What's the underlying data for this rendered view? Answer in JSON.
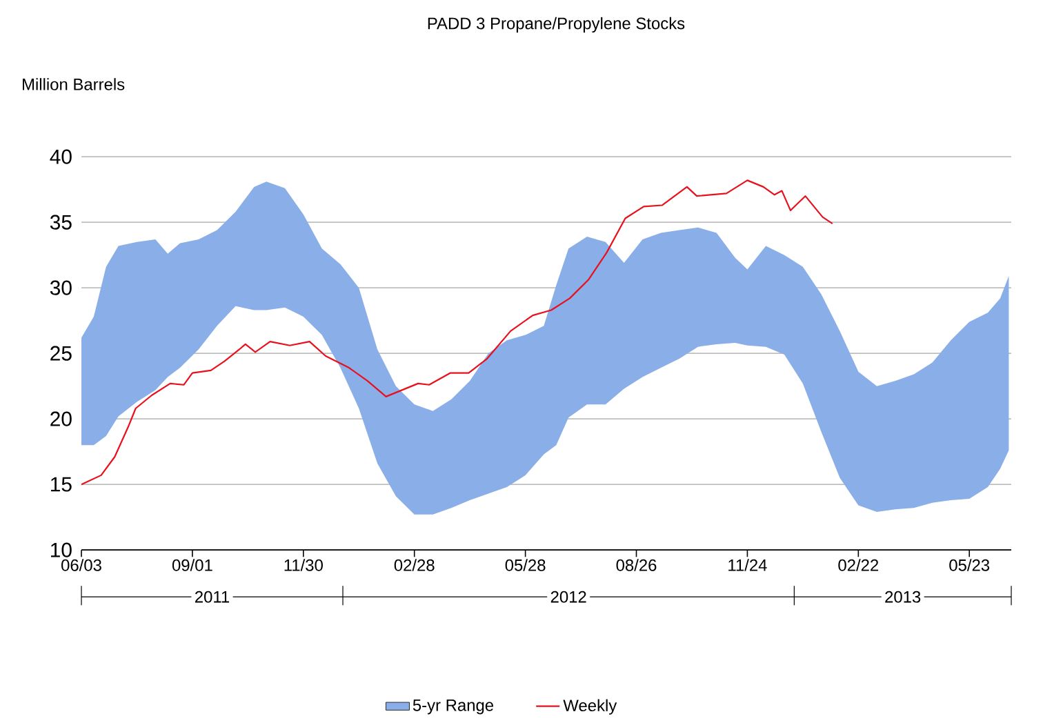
{
  "chart_data": {
    "type": "line",
    "title": "PADD 3 Propane/Propylene Stocks",
    "ylabel": "Million Barrels",
    "xlim": [
      "2011-06-03",
      "2013-06-26"
    ],
    "ylim": [
      10,
      40
    ],
    "yticks": [
      10,
      15,
      20,
      25,
      30,
      35,
      40
    ],
    "xticks": [
      {
        "value": "2011-06-03",
        "label": "06/03"
      },
      {
        "value": "2011-09-01",
        "label": "09/01"
      },
      {
        "value": "2011-11-30",
        "label": "11/30"
      },
      {
        "value": "2012-02-28",
        "label": "02/28"
      },
      {
        "value": "2012-05-28",
        "label": "05/28"
      },
      {
        "value": "2012-08-26",
        "label": "08/26"
      },
      {
        "value": "2012-11-24",
        "label": "11/24"
      },
      {
        "value": "2013-02-22",
        "label": "02/22"
      },
      {
        "value": "2013-05-23",
        "label": "05/23"
      }
    ],
    "annotations": [
      "2011",
      "2012",
      "2013"
    ],
    "grid": "y",
    "legend": "bottom",
    "marker": "none",
    "line_style": "solid",
    "series": [
      {
        "name": "5-yr Range",
        "type": "area",
        "color": "#8aaee8",
        "x": [
          "2011-06-03",
          "2011-06-13",
          "2011-06-23",
          "2011-07-03",
          "2011-07-18",
          "2011-08-02",
          "2011-08-12",
          "2011-08-22",
          "2011-09-06",
          "2011-09-21",
          "2011-10-06",
          "2011-10-21",
          "2011-10-31",
          "2011-11-15",
          "2011-11-30",
          "2011-12-15",
          "2011-12-30",
          "2012-01-14",
          "2012-01-29",
          "2012-02-13",
          "2012-02-28",
          "2012-03-14",
          "2012-03-29",
          "2012-04-13",
          "2012-04-28",
          "2012-05-13",
          "2012-05-28",
          "2012-06-12",
          "2012-06-22",
          "2012-07-02",
          "2012-07-17",
          "2012-08-01",
          "2012-08-16",
          "2012-08-31",
          "2012-09-15",
          "2012-09-30",
          "2012-10-15",
          "2012-10-30",
          "2012-11-14",
          "2012-11-24",
          "2012-12-09",
          "2012-12-24",
          "2013-01-08",
          "2013-01-23",
          "2013-02-07",
          "2013-02-22",
          "2013-03-09",
          "2013-03-24",
          "2013-04-08",
          "2013-04-23",
          "2013-05-08",
          "2013-05-23",
          "2013-06-07",
          "2013-06-17",
          "2013-06-24"
        ],
        "upper": [
          26.2,
          27.8,
          31.6,
          33.2,
          33.5,
          33.7,
          32.6,
          33.4,
          33.7,
          34.4,
          35.8,
          37.7,
          38.1,
          37.6,
          35.6,
          33.0,
          31.8,
          30.0,
          25.3,
          22.5,
          21.1,
          20.6,
          21.5,
          22.9,
          25.0,
          26.0,
          26.4,
          27.1,
          30.2,
          33.0,
          33.9,
          33.5,
          31.9,
          33.7,
          34.2,
          34.4,
          34.6,
          34.2,
          32.3,
          31.4,
          33.2,
          32.5,
          31.6,
          29.5,
          26.7,
          23.6,
          22.5,
          22.9,
          23.4,
          24.3,
          26.0,
          27.4,
          28.1,
          29.2,
          30.9
        ],
        "values": [
          null,
          null,
          null,
          null,
          null,
          null,
          null,
          null,
          null,
          null,
          null,
          null,
          null,
          null,
          null,
          null,
          null,
          null,
          null,
          null,
          null,
          null,
          null,
          null,
          null,
          null,
          null,
          null,
          null,
          null,
          null,
          null,
          null,
          null,
          null,
          null,
          null,
          null,
          null,
          null,
          null,
          null,
          null,
          null,
          null,
          null,
          null,
          null,
          null,
          null,
          null,
          null,
          null,
          null,
          null
        ],
        "lower": [
          18.0,
          18.0,
          18.7,
          20.2,
          21.3,
          22.2,
          23.2,
          23.9,
          25.3,
          27.1,
          28.6,
          28.3,
          28.3,
          28.5,
          27.8,
          26.4,
          23.9,
          20.8,
          16.6,
          14.1,
          12.7,
          12.7,
          13.2,
          13.8,
          14.3,
          14.8,
          15.7,
          17.3,
          18.0,
          20.1,
          21.1,
          21.1,
          22.3,
          23.2,
          23.9,
          24.6,
          25.5,
          25.7,
          25.8,
          25.6,
          25.5,
          24.9,
          22.7,
          19.0,
          15.5,
          13.4,
          12.9,
          13.1,
          13.2,
          13.6,
          13.8,
          13.9,
          14.8,
          16.2,
          17.6
        ]
      },
      {
        "name": "Weekly",
        "color": "#e8101c",
        "x": [
          "2011-06-03",
          "2011-06-19",
          "2011-06-30",
          "2011-07-11",
          "2011-07-17",
          "2011-07-30",
          "2011-08-14",
          "2011-08-25",
          "2011-09-01",
          "2011-09-16",
          "2011-09-27",
          "2011-10-09",
          "2011-10-14",
          "2011-10-22",
          "2011-11-03",
          "2011-11-19",
          "2011-12-05",
          "2011-12-18",
          "2012-01-06",
          "2012-01-21",
          "2012-02-05",
          "2012-03-02",
          "2012-03-11",
          "2012-03-28",
          "2012-04-12",
          "2012-04-27",
          "2012-05-16",
          "2012-06-03",
          "2012-06-18",
          "2012-07-03",
          "2012-07-18",
          "2012-08-02",
          "2012-08-17",
          "2012-09-01",
          "2012-09-16",
          "2012-10-06",
          "2012-10-14",
          "2012-11-07",
          "2012-11-24",
          "2012-12-07",
          "2012-12-16",
          "2012-12-22",
          "2012-12-29",
          "2013-01-10",
          "2013-01-24",
          "2013-02-01"
        ],
        "values": [
          15.0,
          15.7,
          17.1,
          19.4,
          20.8,
          21.8,
          22.7,
          22.6,
          23.5,
          23.7,
          24.4,
          25.3,
          25.7,
          25.1,
          25.9,
          25.6,
          25.9,
          24.8,
          23.9,
          22.9,
          21.7,
          22.7,
          22.6,
          23.5,
          23.5,
          24.6,
          26.7,
          27.9,
          28.3,
          29.2,
          30.6,
          32.7,
          35.3,
          36.2,
          36.3,
          37.7,
          37.0,
          37.2,
          38.2,
          37.7,
          37.1,
          37.4,
          35.9,
          37.0,
          35.4,
          34.9
        ]
      }
    ]
  }
}
